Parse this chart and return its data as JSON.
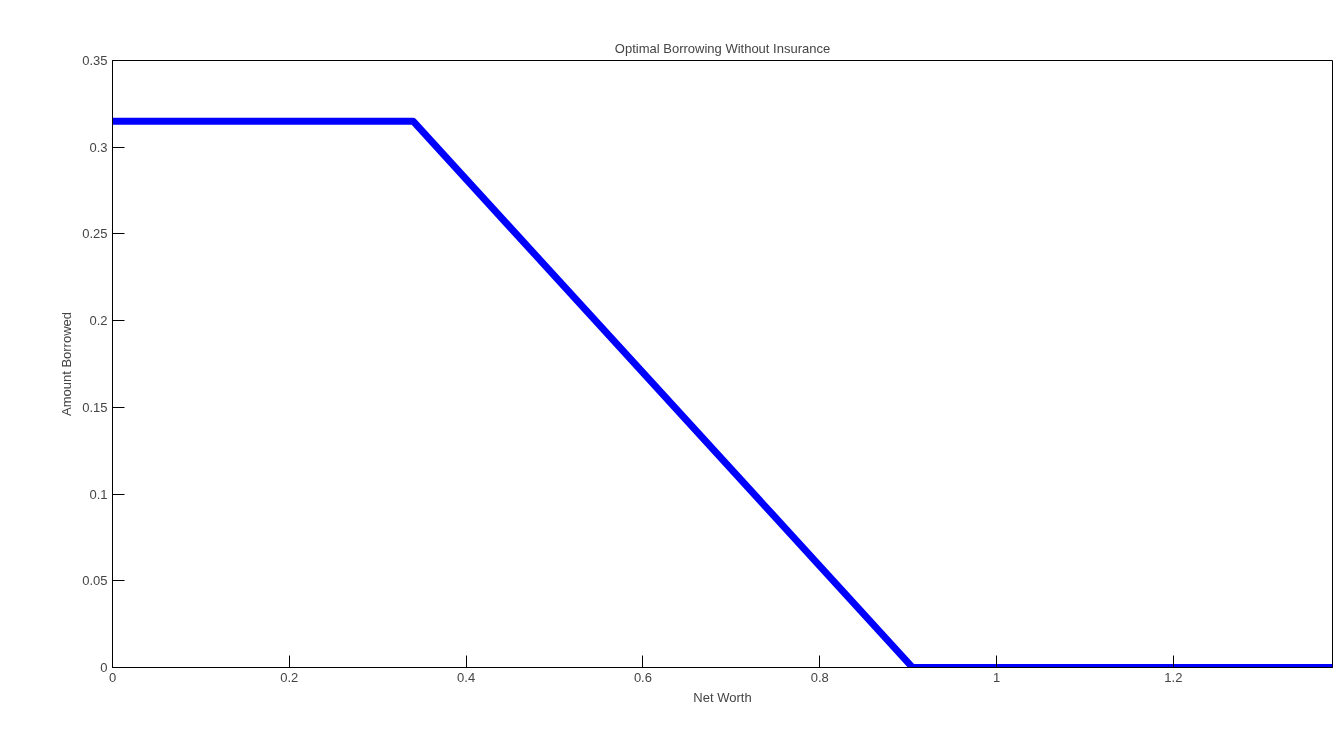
{
  "chart_data": {
    "type": "line",
    "title": "Optimal Borrowing Without Insurance",
    "xlabel": "Net Worth",
    "ylabel": "Amount Borrowed",
    "x": [
      0,
      0.34,
      0.905,
      1.38
    ],
    "series": [
      {
        "color": "#0000ff",
        "values": [
          0.315,
          0.315,
          0,
          0
        ]
      }
    ],
    "xlim": [
      0,
      1.38
    ],
    "ylim": [
      0,
      0.35
    ],
    "xticks": [
      0,
      0.2,
      0.4,
      0.6,
      0.8,
      1,
      1.2
    ],
    "yticks": [
      0,
      0.05,
      0.1,
      0.15,
      0.2,
      0.25,
      0.3,
      0.35
    ],
    "grid": false,
    "line_style": "solid"
  }
}
